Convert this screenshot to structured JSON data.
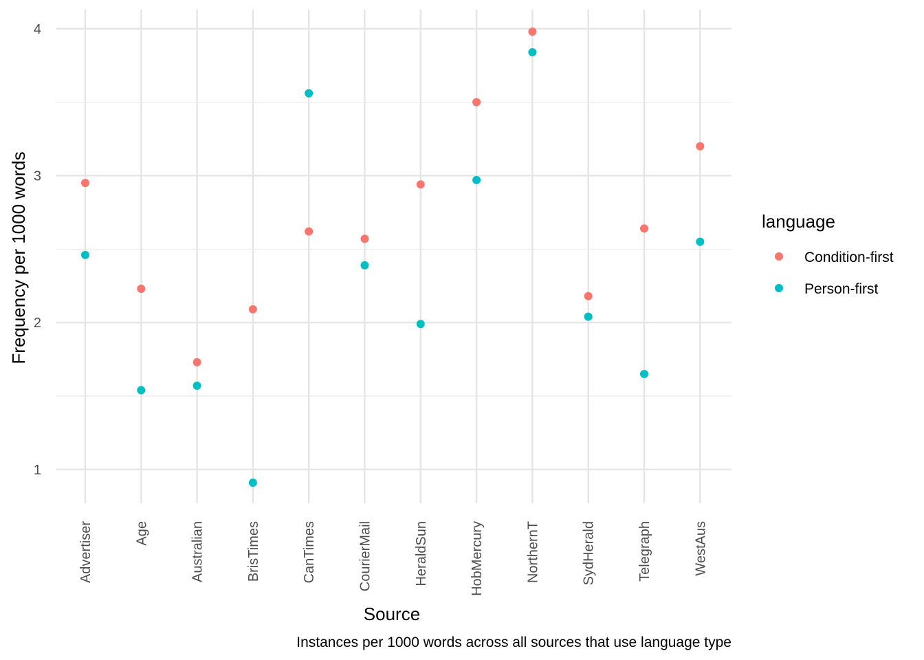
{
  "chart_data": {
    "type": "scatter",
    "categories": [
      "Advertiser",
      "Age",
      "Australian",
      "BrisTimes",
      "CanTimes",
      "CourierMail",
      "HeraldSun",
      "HobMercury",
      "NorthernT",
      "SydHerald",
      "Telegraph",
      "WestAus"
    ],
    "series": [
      {
        "name": "Condition-first",
        "color": "#F8766D",
        "values": [
          2.95,
          2.23,
          1.73,
          2.09,
          2.62,
          2.57,
          2.94,
          3.5,
          3.98,
          2.18,
          2.64,
          3.2
        ]
      },
      {
        "name": "Person-first",
        "color": "#00BFC4",
        "values": [
          2.46,
          1.54,
          1.57,
          0.91,
          3.56,
          2.39,
          1.99,
          2.97,
          3.84,
          2.04,
          1.65,
          2.55
        ]
      }
    ],
    "xlabel": "Source",
    "ylabel": "Frequency per 1000 words",
    "ylim": [
      0.77,
      4.13
    ],
    "yticks": [
      1,
      2,
      3,
      4
    ],
    "legend_title": "language",
    "legend_position": "right",
    "caption": "Instances per 1000 words across all sources that use language type",
    "grid": true
  }
}
